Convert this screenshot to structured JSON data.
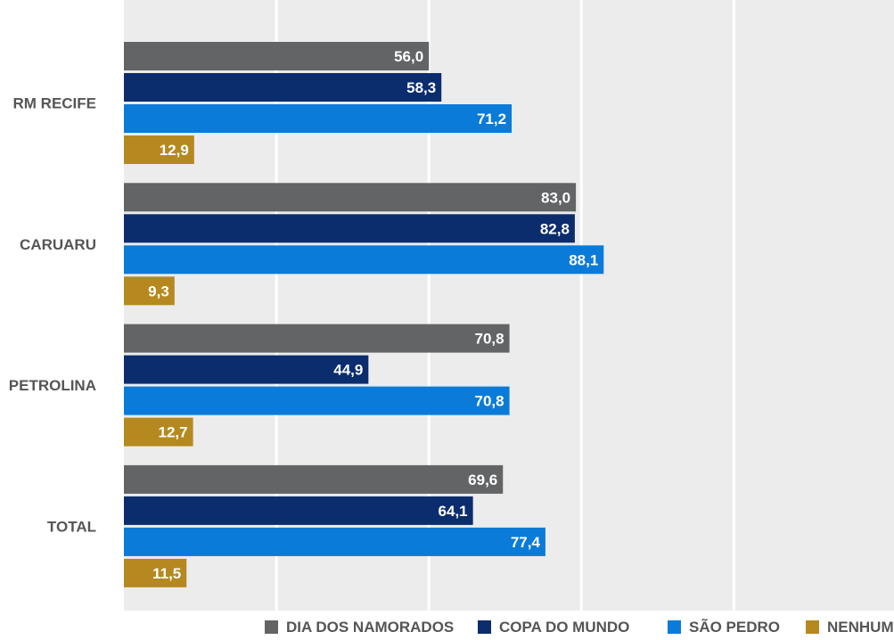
{
  "chart_data": {
    "type": "bar",
    "orientation": "horizontal",
    "categories": [
      "RM RECIFE",
      "CARUARU",
      "PETROLINA",
      "TOTAL"
    ],
    "series": [
      {
        "name": "DIA DOS NAMORADOS",
        "color": "#636466",
        "values": [
          56.0,
          83.0,
          70.8,
          69.6
        ],
        "labels": [
          "56,0",
          "83,0",
          "70,8",
          "69,6"
        ]
      },
      {
        "name": "COPA DO MUNDO",
        "color": "#0b2d6e",
        "values": [
          58.3,
          82.8,
          44.9,
          64.1
        ],
        "labels": [
          "58,3",
          "82,8",
          "44,9",
          "64,1"
        ]
      },
      {
        "name": "SÃO PEDRO",
        "color": "#0a7bd8",
        "values": [
          71.2,
          88.1,
          70.8,
          77.4
        ],
        "labels": [
          "71,2",
          "88,1",
          "70,8",
          "77,4"
        ]
      },
      {
        "name": "NENHUM",
        "color": "#b5891f",
        "values": [
          12.9,
          9.3,
          12.7,
          11.5
        ],
        "labels": [
          "12,9",
          "9,3",
          "12,7",
          "11,5"
        ]
      }
    ],
    "xlim": [
      0,
      140
    ],
    "grid": true,
    "legend_position": "bottom-right",
    "background": "#ececec",
    "gridline_color": "#ffffff"
  }
}
